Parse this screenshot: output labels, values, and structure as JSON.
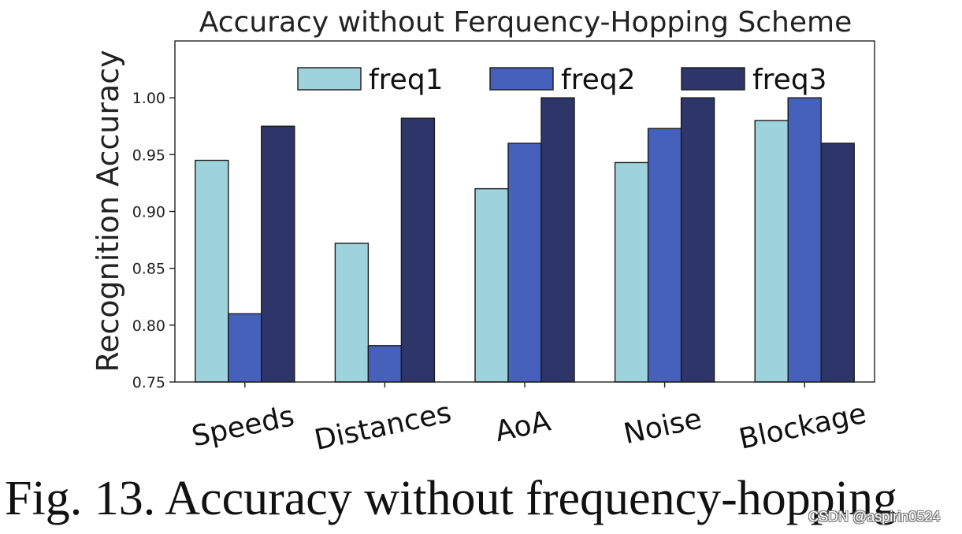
{
  "chart_data": {
    "type": "bar",
    "title": "Accuracy without Ferquency-Hopping Scheme",
    "xlabel": "",
    "ylabel": "Recognition Accuracy",
    "categories": [
      "Speeds",
      "Distances",
      "AoA",
      "Noise",
      "Blockage"
    ],
    "series": [
      {
        "name": "freq1",
        "color": "#9ed2dd",
        "values": [
          0.945,
          0.872,
          0.92,
          0.943,
          0.98
        ]
      },
      {
        "name": "freq2",
        "color": "#4561bb",
        "values": [
          0.81,
          0.782,
          0.96,
          0.973,
          1.0
        ]
      },
      {
        "name": "freq3",
        "color": "#2e3569",
        "values": [
          0.975,
          0.982,
          1.0,
          1.0,
          0.96
        ]
      }
    ],
    "ylim": [
      0.75,
      1.05
    ],
    "yticks": [
      "0.75",
      "0.80",
      "0.85",
      "0.90",
      "0.95",
      "1.00"
    ],
    "grid": false,
    "legend_position": "top"
  },
  "caption": "Fig. 13.  Accuracy without frequency-hopping",
  "watermark": "CSDN @aspirin0524"
}
